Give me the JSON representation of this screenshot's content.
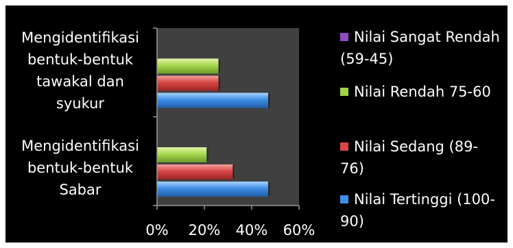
{
  "chart_data": {
    "type": "bar",
    "orientation": "horizontal",
    "title": "",
    "xlabel": "",
    "ylabel": "",
    "xlim": [
      0,
      60
    ],
    "x_ticks": [
      "0%",
      "20%",
      "40%",
      "60%"
    ],
    "categories": [
      "Mengidentifikasi bentuk-bentuk tawakal dan syukur",
      "Mengidentifikasi bentuk-bentuk Sabar"
    ],
    "series": [
      {
        "name": "Nilai Sangat Rendah (59-45)",
        "color": "#8d4cc4",
        "values": [
          0,
          0
        ]
      },
      {
        "name": "Nilai Rendah 75-60",
        "color": "#9fd34a",
        "values": [
          26,
          21
        ]
      },
      {
        "name": "Nilai Sedang (89-76)",
        "color": "#d94645",
        "values": [
          26,
          32
        ]
      },
      {
        "name": "Nilai Tertinggi (100-90)",
        "color": "#3f8fe6",
        "values": [
          47,
          47
        ]
      }
    ],
    "grid": false,
    "legend_position": "right",
    "plot_background": "#404040",
    "background": "#000000"
  },
  "category_label_lines": [
    [
      "Mengidentifikasi",
      "bentuk-bentuk",
      "tawakal dan",
      "syukur"
    ],
    [
      "Mengidentifikasi",
      "bentuk-bentuk",
      "Sabar"
    ]
  ],
  "legend_label_lines": [
    [
      "Nilai Sangat Rendah",
      "(59-45)"
    ],
    [
      "Nilai Rendah 75-60"
    ],
    [
      "Nilai Sedang (89-",
      "76)"
    ],
    [
      "Nilai Tertinggi (100-",
      "90)"
    ]
  ]
}
